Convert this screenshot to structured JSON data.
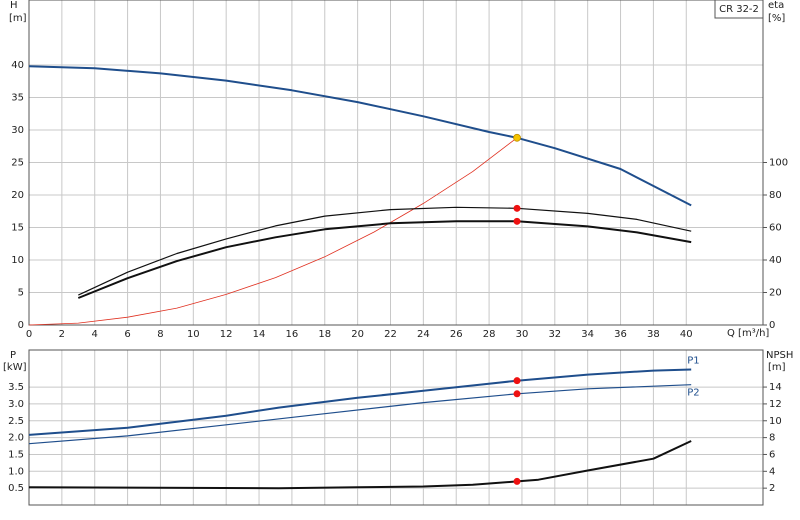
{
  "chart_data": [
    {
      "type": "line",
      "title": "CR 32-2",
      "xlabel": "Q [m³/h]",
      "ylabel": "H",
      "yunit": "[m]",
      "y2label": "eta",
      "y2unit": "[%]",
      "xlim": [
        0,
        44.67
      ],
      "xticks": [
        0,
        2,
        4,
        6,
        8,
        10,
        12,
        14,
        16,
        18,
        20,
        22,
        24,
        26,
        28,
        30,
        32,
        34,
        36,
        38,
        40
      ],
      "ylim": [
        0,
        50
      ],
      "yticks": [
        0,
        5,
        10,
        15,
        20,
        25,
        30,
        35,
        40
      ],
      "y2lim": [
        0,
        200
      ],
      "y2ticks": [
        0,
        20,
        40,
        60,
        80,
        100
      ],
      "grid": true,
      "series": [
        {
          "color": "#1f4e8c",
          "width": 2,
          "x": [
            0,
            4,
            8,
            12,
            16,
            20,
            24,
            28,
            29.7,
            32,
            36,
            40.3
          ],
          "values": [
            39.8,
            39.5,
            38.7,
            37.6,
            36.1,
            34.3,
            32.1,
            29.7,
            28.8,
            27.2,
            24.0,
            18.4
          ]
        },
        {
          "color": "#e03020",
          "width": 0.8,
          "x": [
            0,
            3,
            6,
            9,
            12,
            15,
            18,
            21,
            24,
            27,
            29.7
          ],
          "values": [
            0,
            0.3,
            1.2,
            2.6,
            4.7,
            7.3,
            10.5,
            14.3,
            18.7,
            23.6,
            28.8
          ]
        },
        {
          "color": "#111111",
          "width": 1.2,
          "axis": "y2",
          "x": [
            3,
            6,
            9,
            12,
            15,
            18,
            22,
            26,
            29.7,
            34,
            37,
            40.3
          ],
          "values": [
            18.4,
            32.5,
            44,
            53,
            61,
            67,
            71,
            72.4,
            71.8,
            68.7,
            65,
            57.7
          ]
        },
        {
          "color": "#111111",
          "width": 2,
          "axis": "y2",
          "x": [
            3,
            6,
            9,
            12,
            15,
            18,
            22,
            26,
            29.7,
            34,
            37,
            40.3
          ],
          "values": [
            16.6,
            28.8,
            39.3,
            47.9,
            54,
            58.9,
            62.6,
            63.8,
            63.8,
            60.7,
            57,
            51
          ]
        }
      ],
      "markers": [
        {
          "color": "#f5c400",
          "x": 29.7,
          "y": 28.8
        },
        {
          "color": "#ee1111",
          "axis": "y2",
          "x": 29.7,
          "y": 71.8
        },
        {
          "color": "#ee1111",
          "axis": "y2",
          "x": 29.7,
          "y": 63.8
        }
      ]
    },
    {
      "type": "line",
      "ylabel": "P",
      "yunit": "[kW]",
      "y2label": "NPSH",
      "y2unit": "[m]",
      "xlim": [
        0,
        44.67
      ],
      "ylim": [
        0,
        4.6
      ],
      "yticks": [
        0.5,
        {
          "value": 1,
          "label": "1.0"
        },
        1.5,
        {
          "value": 2,
          "label": "2.0"
        },
        2.5,
        {
          "value": 3,
          "label": "3.0"
        },
        3.5
      ],
      "y2lim": [
        0,
        18.4
      ],
      "y2ticks": [
        2,
        4,
        6,
        8,
        10,
        12,
        14
      ],
      "grid": true,
      "series": [
        {
          "name": "P1",
          "color": "#1f4e8c",
          "width": 2,
          "x": [
            0,
            6,
            12,
            15.2,
            20,
            24,
            29.7,
            34,
            38,
            40.3
          ],
          "values": [
            2.08,
            2.29,
            2.65,
            2.89,
            3.18,
            3.39,
            3.69,
            3.87,
            3.99,
            4.02
          ]
        },
        {
          "name": "P2",
          "color": "#1f4e8c",
          "width": 1.2,
          "x": [
            0,
            6,
            12,
            18,
            24,
            29.7,
            34,
            40.3
          ],
          "values": [
            1.82,
            2.05,
            2.38,
            2.71,
            3.04,
            3.3,
            3.45,
            3.57
          ]
        },
        {
          "color": "#111111",
          "width": 2,
          "axis": "y2",
          "x": [
            0,
            15.2,
            20,
            24,
            27,
            29.7,
            31,
            34,
            38,
            40.3
          ],
          "values": [
            2.1,
            2.0,
            2.1,
            2.2,
            2.4,
            2.8,
            3.0,
            4.1,
            5.5,
            7.6
          ]
        }
      ],
      "markers": [
        {
          "color": "#ee1111",
          "x": 29.7,
          "y": 3.69
        },
        {
          "color": "#ee1111",
          "x": 29.7,
          "y": 3.3
        },
        {
          "color": "#ee1111",
          "axis": "y2",
          "x": 29.7,
          "y": 2.8
        }
      ]
    }
  ]
}
